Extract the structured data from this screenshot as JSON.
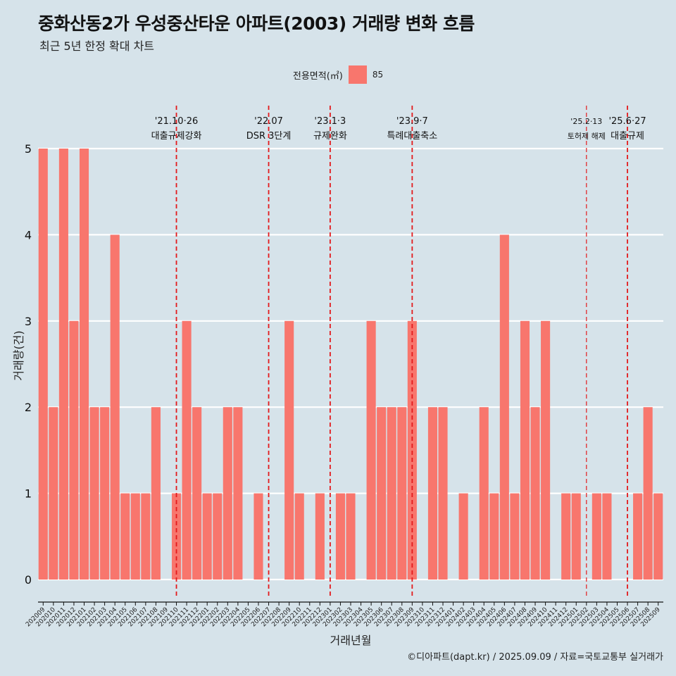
{
  "title": "중화산동2가 우성중산타운 아파트(2003) 거래량 변화 흐름",
  "subtitle": "최근 5년 한정 확대 차트",
  "legend": {
    "title": "전용면적(㎡)",
    "label": "85"
  },
  "caption": "©디아파트(dapt.kr) / 2025.09.09 / 자료=국토교통부 실거래가",
  "chart_data": {
    "type": "bar",
    "xlabel": "거래년월",
    "ylabel": "거래량(건)",
    "ylim": [
      -0.25,
      5.2
    ],
    "yticks": [
      0,
      1,
      2,
      3,
      4,
      5
    ],
    "grid": true,
    "bar_color": "#f8766d",
    "categories": [
      "202009",
      "202010",
      "202011",
      "202012",
      "202101",
      "202102",
      "202103",
      "202104",
      "202105",
      "202106",
      "202107",
      "202108",
      "202109",
      "202110",
      "202111",
      "202112",
      "202201",
      "202202",
      "202203",
      "202204",
      "202205",
      "202206",
      "202207",
      "202208",
      "202209",
      "202210",
      "202211",
      "202212",
      "202301",
      "202302",
      "202303",
      "202304",
      "202305",
      "202306",
      "202307",
      "202308",
      "202309",
      "202310",
      "202311",
      "202312",
      "202401",
      "202402",
      "202403",
      "202404",
      "202405",
      "202406",
      "202407",
      "202408",
      "202409",
      "202410",
      "202411",
      "202412",
      "202501",
      "202502",
      "202503",
      "202504",
      "202505",
      "202506",
      "202507",
      "202508",
      "202509"
    ],
    "series": [
      {
        "name": "85",
        "values": [
          5,
          2,
          5,
          3,
          5,
          2,
          2,
          4,
          1,
          1,
          1,
          2,
          0,
          1,
          3,
          2,
          1,
          1,
          2,
          2,
          0,
          1,
          0,
          0,
          3,
          1,
          0,
          1,
          0,
          1,
          1,
          0,
          3,
          2,
          2,
          2,
          3,
          0,
          2,
          2,
          0,
          1,
          0,
          2,
          1,
          4,
          1,
          3,
          2,
          3,
          0,
          1,
          1,
          0,
          1,
          1,
          0,
          0,
          1,
          2,
          1
        ]
      }
    ],
    "annotations": [
      {
        "x": "202110",
        "date": "'21.10·26",
        "label": "대출규제강화",
        "small": false
      },
      {
        "x": "202207",
        "date": "'22.07",
        "label": "DSR 3단계",
        "small": false
      },
      {
        "x": "202301",
        "date": "'23.1·3",
        "label": "규제완화",
        "small": false
      },
      {
        "x": "202309",
        "date": "'23.9·7",
        "label": "특례대출축소",
        "small": false
      },
      {
        "x": "202502",
        "date": "'25.2·13",
        "label": "토허제 해제",
        "small": true
      },
      {
        "x": "202506",
        "date": "'25.6·27",
        "label": "대출규제",
        "small": false
      }
    ]
  }
}
